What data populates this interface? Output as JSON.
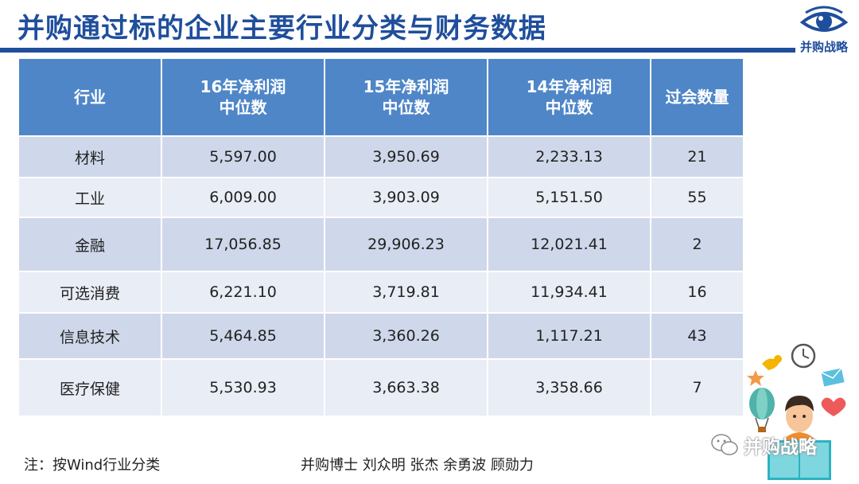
{
  "header": {
    "title": "并购通过标的企业主要行业分类与财务数据",
    "logo_text": "并购战略",
    "brand_color": "#1f4e9c"
  },
  "table": {
    "headers": [
      {
        "line1": "行业",
        "line2": ""
      },
      {
        "line1": "16年净利润",
        "line2": "中位数"
      },
      {
        "line1": "15年净利润",
        "line2": "中位数"
      },
      {
        "line1": "14年净利润",
        "line2": "中位数"
      },
      {
        "line1": "过会数量",
        "line2": ""
      }
    ],
    "rows": [
      [
        "材料",
        "5,597.00",
        "3,950.69",
        "2,233.13",
        "21"
      ],
      [
        "工业",
        "6,009.00",
        "3,903.09",
        "5,151.50",
        "55"
      ],
      [
        "金融",
        "17,056.85",
        "29,906.23",
        "12,021.41",
        "2"
      ],
      [
        "可选消费",
        "6,221.10",
        "3,719.81",
        "11,934.41",
        "16"
      ],
      [
        "信息技术",
        "5,464.85",
        "3,360.26",
        "1,117.21",
        "43"
      ],
      [
        "医疗保健",
        "5,530.93",
        "3,663.38",
        "3,358.66",
        "7"
      ]
    ],
    "header_color": "#4f86c8",
    "row_color_odd": "#cfd8ea",
    "row_color_even": "#e9edf5"
  },
  "footer": {
    "note": "注：按Wind行业分类",
    "authors": "并购博士 刘众明 张杰 余勇波 顾勋力"
  },
  "watermark": {
    "text": "并购战略",
    "icon": "wechat-icon"
  },
  "logo_icon": "eye-icon"
}
